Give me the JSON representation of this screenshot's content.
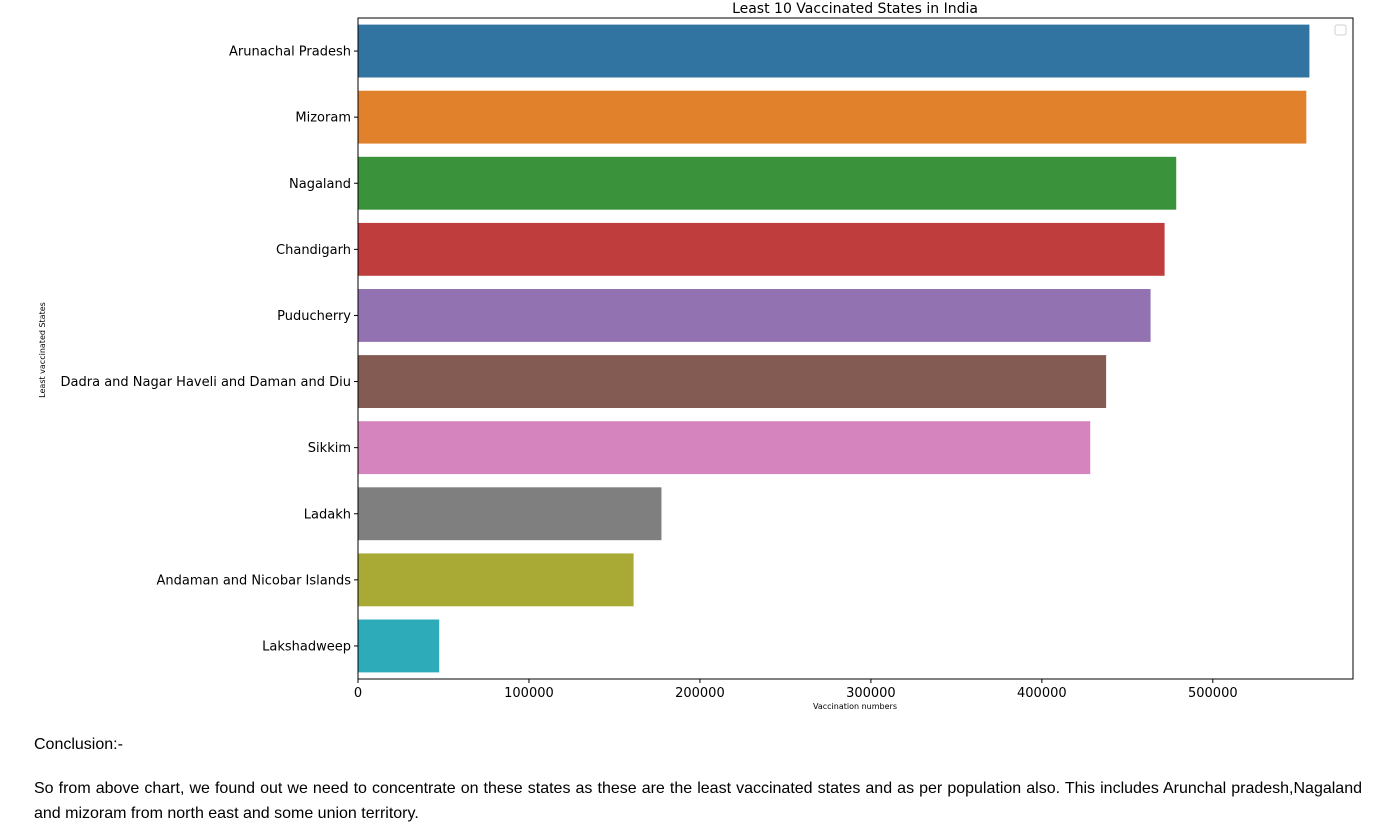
{
  "chart_data": {
    "type": "bar",
    "orientation": "horizontal",
    "title": "Least 10 Vaccinated States in India",
    "xlabel": "Vaccination numbers",
    "ylabel": "Least vaccinated States",
    "categories": [
      "Arunachal Pradesh",
      "Mizoram",
      "Nagaland",
      "Chandigarh",
      "Puducherry",
      "Dadra and Nagar Haveli and Daman and Diu",
      "Sikkim",
      "Ladakh",
      "Andaman and Nicobar Islands",
      "Lakshadweep"
    ],
    "values": [
      556500,
      554700,
      478600,
      471800,
      463600,
      437600,
      428300,
      177500,
      161200,
      47500
    ],
    "colors": [
      "#3274a1",
      "#e1812c",
      "#3a923a",
      "#c03d3e",
      "#9372b2",
      "#845b53",
      "#d684bd",
      "#7f7f7f",
      "#a9aa35",
      "#2eabb8"
    ],
    "xlim": [
      0,
      582000
    ],
    "xticks": [
      0,
      100000,
      200000,
      300000,
      400000,
      500000
    ],
    "xtick_labels": [
      "0",
      "100000",
      "200000",
      "300000",
      "400000",
      "500000"
    ],
    "grid": false,
    "legend": "top-right (empty)"
  },
  "conclusion": {
    "heading": "Conclusion:-",
    "text": "So from above chart, we found out we need to concentrate on these states as these are the least vaccinated states and as per population also. This includes Arunchal pradesh,Nagaland and mizoram from north east and some union territory."
  }
}
